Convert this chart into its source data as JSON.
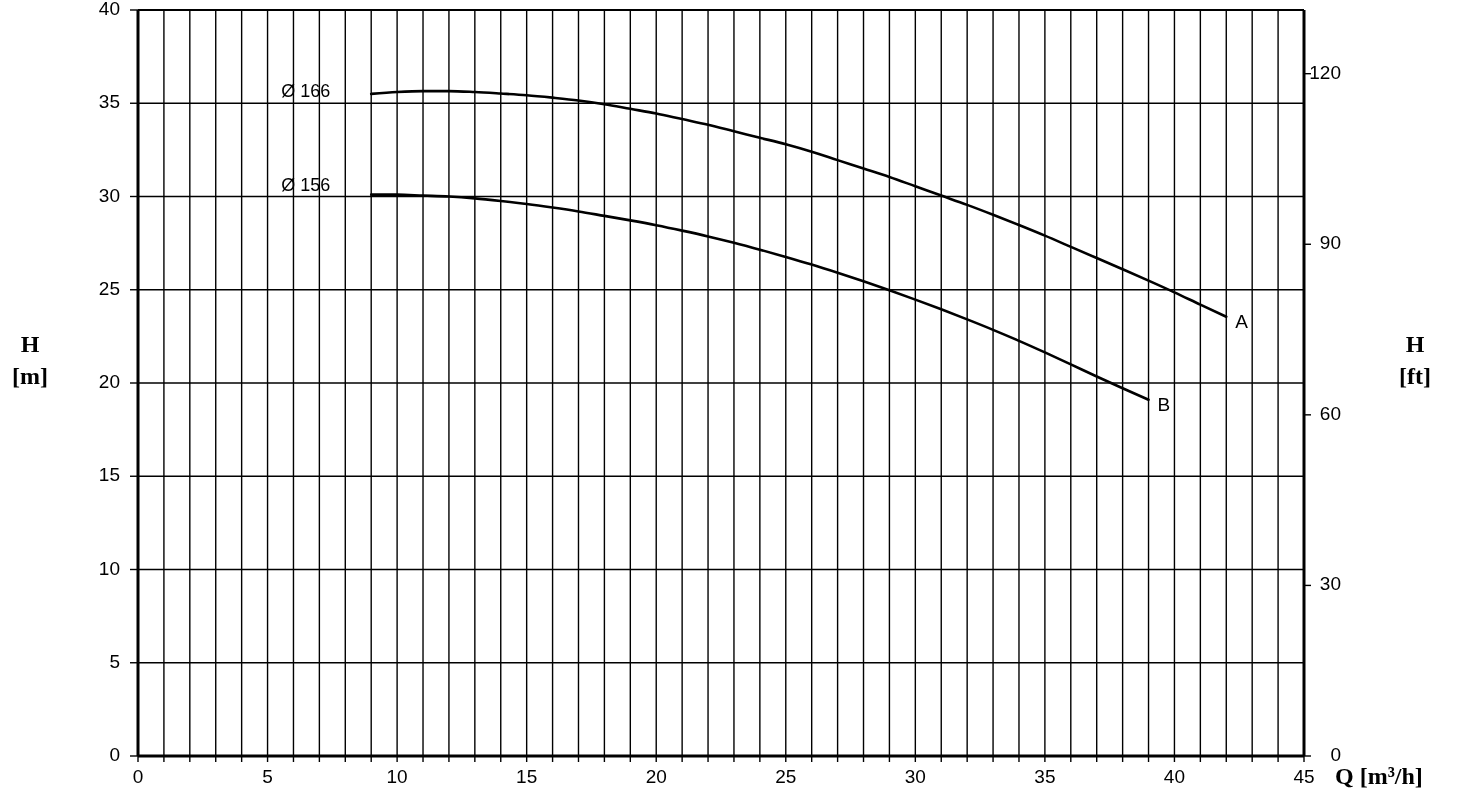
{
  "chart_data": {
    "type": "line",
    "xlabel": "Q [m³/h]",
    "ylabel": "H [m]",
    "y2label": "H [ft]",
    "xlim": [
      0,
      45
    ],
    "ylim": [
      0,
      40
    ],
    "y2lim": [
      0,
      131.2
    ],
    "xticks": [
      0,
      {
        "value": 1,
        "label": null
      },
      {
        "value": 2,
        "label": null
      },
      {
        "value": 3,
        "label": null
      },
      {
        "value": 4,
        "label": null
      },
      5,
      {
        "value": 6,
        "label": null
      },
      {
        "value": 7,
        "label": null
      },
      {
        "value": 8,
        "label": null
      },
      {
        "value": 9,
        "label": null
      },
      10,
      {
        "value": 11,
        "label": null
      },
      {
        "value": 12,
        "label": null
      },
      {
        "value": 13,
        "label": null
      },
      {
        "value": 14,
        "label": null
      },
      15,
      {
        "value": 16,
        "label": null
      },
      {
        "value": 17,
        "label": null
      },
      {
        "value": 18,
        "label": null
      },
      {
        "value": 19,
        "label": null
      },
      20,
      {
        "value": 21,
        "label": null
      },
      {
        "value": 22,
        "label": null
      },
      {
        "value": 23,
        "label": null
      },
      {
        "value": 24,
        "label": null
      },
      25,
      {
        "value": 26,
        "label": null
      },
      {
        "value": 27,
        "label": null
      },
      {
        "value": 28,
        "label": null
      },
      {
        "value": 29,
        "label": null
      },
      30,
      {
        "value": 31,
        "label": null
      },
      {
        "value": 32,
        "label": null
      },
      {
        "value": 33,
        "label": null
      },
      {
        "value": 34,
        "label": null
      },
      35,
      {
        "value": 36,
        "label": null
      },
      {
        "value": 37,
        "label": null
      },
      {
        "value": 38,
        "label": null
      },
      {
        "value": 39,
        "label": null
      },
      40,
      {
        "value": 41,
        "label": null
      },
      {
        "value": 42,
        "label": null
      },
      {
        "value": 43,
        "label": null
      },
      {
        "value": 44,
        "label": null
      },
      45
    ],
    "yticks": [
      0,
      5,
      10,
      15,
      20,
      25,
      30,
      35,
      40
    ],
    "y2ticks": [
      0,
      30,
      60,
      90,
      120
    ],
    "grid": true,
    "line_style": "solid",
    "annotations": [
      "Ø 166",
      "Ø 156"
    ],
    "series": [
      {
        "name": "A",
        "color": "#000000",
        "x": [
          9,
          10,
          11,
          12,
          13,
          14,
          15,
          16,
          17,
          18,
          19,
          20,
          21,
          22,
          23,
          24,
          25,
          26,
          27,
          28,
          29,
          30,
          31,
          32,
          33,
          34,
          35,
          36,
          37,
          38,
          39,
          40,
          41,
          42
        ],
        "values": [
          35.5,
          35.6,
          35.65,
          35.65,
          35.6,
          35.52,
          35.43,
          35.3,
          35.15,
          34.95,
          34.7,
          34.45,
          34.15,
          33.85,
          33.5,
          33.15,
          32.8,
          32.4,
          31.95,
          31.5,
          31.05,
          30.55,
          30.05,
          29.55,
          29.02,
          28.47,
          27.9,
          27.3,
          26.7,
          26.1,
          25.49,
          24.86,
          24.2,
          23.55
        ]
      },
      {
        "name": "B",
        "color": "#000000",
        "x": [
          9,
          10,
          11,
          12,
          13,
          14,
          15,
          16,
          17,
          18,
          19,
          20,
          21,
          22,
          23,
          24,
          25,
          26,
          27,
          28,
          29,
          30,
          31,
          32,
          33,
          34,
          35,
          36,
          37,
          38,
          39
        ],
        "values": [
          30.1,
          30.1,
          30.05,
          30.0,
          29.9,
          29.76,
          29.6,
          29.41,
          29.2,
          28.96,
          28.72,
          28.46,
          28.17,
          27.86,
          27.52,
          27.15,
          26.76,
          26.35,
          25.91,
          25.45,
          24.97,
          24.47,
          23.95,
          23.41,
          22.85,
          22.26,
          21.64,
          21.0,
          20.35,
          19.72,
          19.1
        ]
      }
    ]
  }
}
